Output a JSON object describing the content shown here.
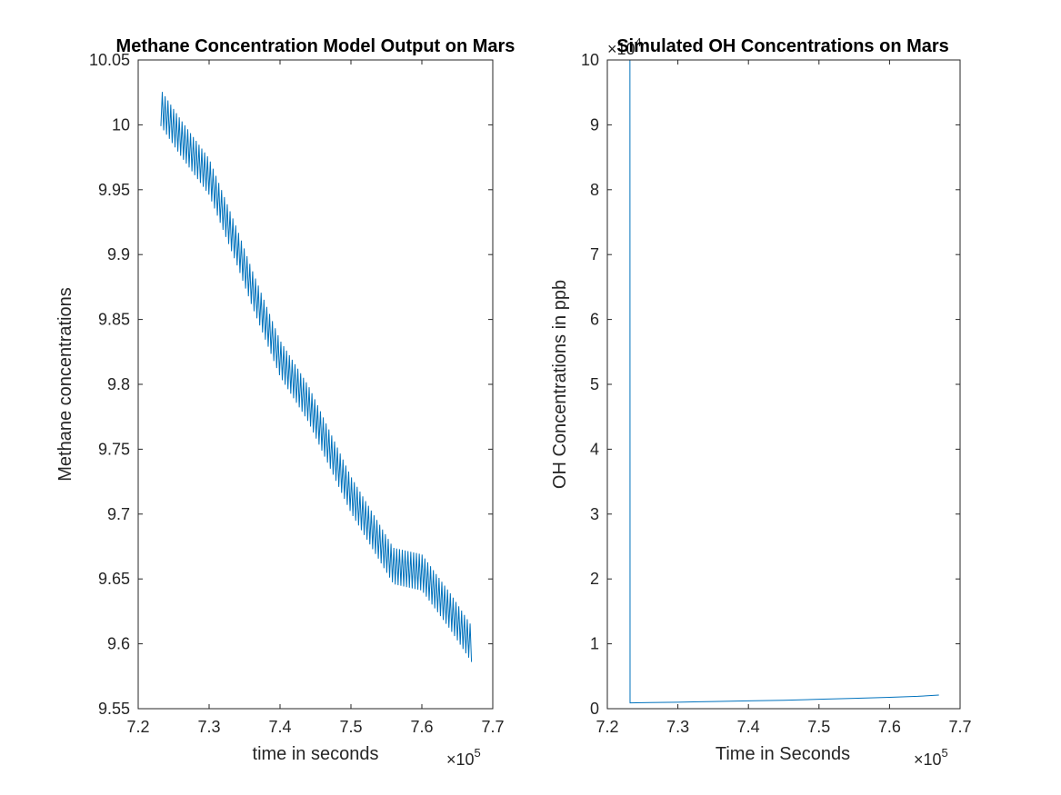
{
  "chart_data": [
    {
      "type": "line",
      "title": "Methane Concentration Model Output on Mars",
      "xlabel": "time in seconds",
      "ylabel": "Methane concentrations",
      "x_exponent_label": "×10",
      "x_exponent_power": "5",
      "xlim": [
        7.2,
        7.7
      ],
      "ylim": [
        9.55,
        10.05
      ],
      "xticks": [
        "7.2",
        "7.3",
        "7.4",
        "7.5",
        "7.6",
        "7.7"
      ],
      "yticks": [
        "9.55",
        "9.6",
        "9.65",
        "9.7",
        "9.75",
        "9.8",
        "9.85",
        "9.9",
        "9.95",
        "10",
        "10.05"
      ],
      "grid": false,
      "series": [
        {
          "color": "#0072bd",
          "oscillation_amplitude": 0.028,
          "oscillation_cycles": 110,
          "envelope": {
            "x": [
              7.232,
              7.26,
              7.3,
              7.34,
              7.36,
              7.4,
              7.44,
              7.5,
              7.56,
              7.6,
              7.64,
              7.67
            ],
            "y": [
              10.013,
              9.99,
              9.96,
              9.905,
              9.875,
              9.82,
              9.785,
              9.715,
              9.66,
              9.655,
              9.625,
              9.6
            ]
          }
        }
      ]
    },
    {
      "type": "line",
      "title": "Simulated OH Concentrations on Mars",
      "xlabel": "Time in Seconds",
      "ylabel": "OH Concentrations in ppb",
      "x_exponent_label": "×10",
      "x_exponent_power": "5",
      "y_exponent_label": "×10",
      "y_exponent_power": "4",
      "xlim": [
        7.2,
        7.7
      ],
      "ylim": [
        0,
        10
      ],
      "xticks": [
        "7.2",
        "7.3",
        "7.4",
        "7.5",
        "7.6",
        "7.7"
      ],
      "yticks": [
        "0",
        "1",
        "2",
        "3",
        "4",
        "5",
        "6",
        "7",
        "8",
        "9",
        "10"
      ],
      "grid": false,
      "series": [
        {
          "color": "#0072bd",
          "x": [
            7.232,
            7.2322,
            7.26,
            7.3,
            7.35,
            7.4,
            7.45,
            7.5,
            7.55,
            7.6,
            7.64,
            7.67
          ],
          "y": [
            12.0,
            0.09,
            0.095,
            0.1,
            0.11,
            0.12,
            0.13,
            0.145,
            0.16,
            0.175,
            0.19,
            0.21
          ]
        }
      ]
    }
  ]
}
